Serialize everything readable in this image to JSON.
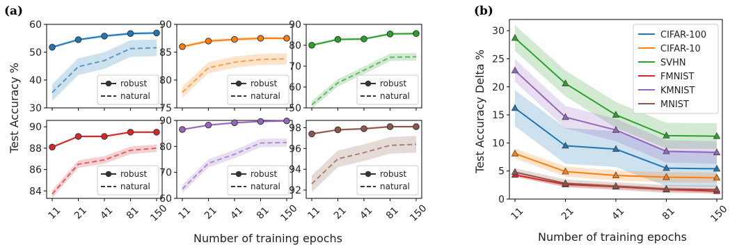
{
  "panel_labels": {
    "a": "(a)",
    "b": "(b)"
  },
  "figure": {
    "shared_x_ticks": [
      "11",
      "21",
      "41",
      "81",
      "150"
    ],
    "a_xlabel": "Number of training epochs",
    "a_ylabel": "Test Accuracy %",
    "b_xlabel": "Number of training epochs",
    "b_ylabel": "Test Accuracy Delta %"
  },
  "colors": {
    "CIFAR-100": "#1f77b4",
    "CIFAR-10": "#ff7f0e",
    "SVHN": "#2ca02c",
    "FMNIST": "#d62728",
    "KMNIST": "#9467bd",
    "MNIST": "#8c564b"
  },
  "chart_data": [
    {
      "type": "line",
      "panel": "a",
      "color_key": "CIFAR-100",
      "categories": [
        "11",
        "21",
        "41",
        "81",
        "150"
      ],
      "ylim": [
        30,
        60
      ],
      "yticks": [
        30,
        40,
        50,
        60
      ],
      "legend": {
        "position": "lower right",
        "entries": [
          "robust",
          "natural"
        ]
      },
      "series": [
        {
          "name": "robust",
          "values": [
            51.8,
            54.5,
            55.8,
            56.7,
            56.9
          ]
        },
        {
          "name": "natural",
          "values": [
            35.5,
            44.8,
            47.0,
            51.3,
            51.6
          ]
        }
      ],
      "bands": {
        "robust": 0.5,
        "natural": 3.0
      }
    },
    {
      "type": "line",
      "panel": "a",
      "color_key": "CIFAR-10",
      "categories": [
        "11",
        "21",
        "41",
        "81",
        "150"
      ],
      "ylim": [
        75,
        90
      ],
      "yticks": [
        75,
        80,
        85,
        90
      ],
      "legend": {
        "position": "lower right",
        "entries": [
          "robust",
          "natural"
        ]
      },
      "series": [
        {
          "name": "robust",
          "values": [
            86.0,
            87.0,
            87.3,
            87.5,
            87.5
          ]
        },
        {
          "name": "natural",
          "values": [
            77.8,
            82.2,
            83.2,
            83.7,
            83.8
          ]
        }
      ],
      "bands": {
        "robust": 0.3,
        "natural": 1.0
      }
    },
    {
      "type": "line",
      "panel": "a",
      "color_key": "SVHN",
      "categories": [
        "11",
        "21",
        "41",
        "81",
        "150"
      ],
      "ylim": [
        50,
        90
      ],
      "yticks": [
        50,
        60,
        70,
        80,
        90
      ],
      "legend": {
        "position": "lower right",
        "entries": [
          "robust",
          "natural"
        ]
      },
      "series": [
        {
          "name": "robust",
          "values": [
            80.0,
            82.8,
            83.0,
            85.4,
            85.6
          ]
        },
        {
          "name": "natural",
          "values": [
            51.5,
            62.0,
            68.0,
            74.2,
            74.5
          ]
        }
      ],
      "bands": {
        "robust": 0.6,
        "natural": 1.8
      }
    },
    {
      "type": "line",
      "panel": "a",
      "color_key": "FMNIST",
      "categories": [
        "11",
        "21",
        "41",
        "81",
        "150"
      ],
      "ylim": [
        83.3,
        90.6
      ],
      "yticks": [
        84,
        86,
        88,
        90
      ],
      "legend": {
        "position": "lower right",
        "entries": [
          "robust",
          "natural"
        ]
      },
      "series": [
        {
          "name": "robust",
          "values": [
            88.1,
            89.1,
            89.1,
            89.5,
            89.5
          ]
        },
        {
          "name": "natural",
          "values": [
            83.7,
            86.5,
            86.9,
            87.8,
            88.0
          ]
        }
      ],
      "bands": {
        "robust": 0.1,
        "natural": 0.35
      }
    },
    {
      "type": "line",
      "panel": "a",
      "color_key": "KMNIST",
      "categories": [
        "11",
        "21",
        "41",
        "81",
        "150"
      ],
      "ylim": [
        60,
        90
      ],
      "yticks": [
        60,
        70,
        80,
        90
      ],
      "legend": {
        "position": "lower right",
        "entries": [
          "robust",
          "natural"
        ]
      },
      "series": [
        {
          "name": "robust",
          "values": [
            86.5,
            88.2,
            89.1,
            89.6,
            89.8
          ]
        },
        {
          "name": "natural",
          "values": [
            63.6,
            73.5,
            77.0,
            81.3,
            81.5
          ]
        }
      ],
      "bands": {
        "robust": 0.4,
        "natural": 1.6
      }
    },
    {
      "type": "line",
      "panel": "a",
      "color_key": "MNIST",
      "categories": [
        "11",
        "21",
        "41",
        "81",
        "150"
      ],
      "ylim": [
        91.2,
        98.7
      ],
      "yticks": [
        92,
        94,
        96,
        98
      ],
      "legend": {
        "position": "lower right",
        "entries": [
          "robust",
          "natural"
        ]
      },
      "series": [
        {
          "name": "robust",
          "values": [
            97.4,
            97.8,
            97.9,
            98.1,
            98.1
          ]
        },
        {
          "name": "natural",
          "values": [
            92.6,
            95.0,
            95.6,
            96.3,
            96.4
          ]
        }
      ],
      "bands": {
        "robust": 0.1,
        "natural": 0.8
      }
    },
    {
      "type": "line",
      "panel": "b",
      "categories": [
        "11",
        "21",
        "41",
        "81",
        "150"
      ],
      "ylim": [
        0,
        32
      ],
      "yticks": [
        0,
        5,
        10,
        15,
        20,
        25,
        30
      ],
      "legend": {
        "position": "upper right"
      },
      "series": [
        {
          "name": "CIFAR-100",
          "values": [
            16.2,
            9.5,
            8.9,
            5.5,
            5.4
          ],
          "band": 3.2
        },
        {
          "name": "CIFAR-10",
          "values": [
            8.1,
            4.9,
            4.2,
            3.9,
            3.8
          ],
          "band": 0.9
        },
        {
          "name": "SVHN",
          "values": [
            28.7,
            20.6,
            15.0,
            11.3,
            11.2
          ],
          "band": 2.3
        },
        {
          "name": "FMNIST",
          "values": [
            4.3,
            2.6,
            2.2,
            1.7,
            1.4
          ],
          "band": 0.4
        },
        {
          "name": "KMNIST",
          "values": [
            22.9,
            14.6,
            12.3,
            8.5,
            8.3
          ],
          "band": 2.0
        },
        {
          "name": "MNIST",
          "values": [
            4.8,
            2.8,
            2.3,
            1.8,
            1.7
          ],
          "band": 0.7
        }
      ]
    }
  ]
}
